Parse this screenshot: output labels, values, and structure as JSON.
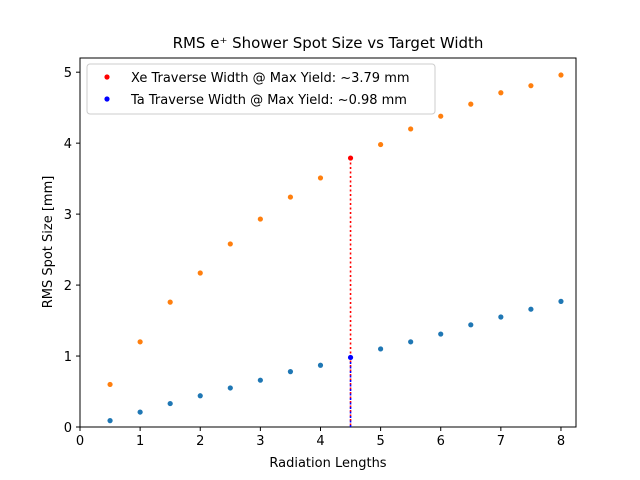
{
  "chart_data": {
    "type": "scatter",
    "title": "RMS e⁺ Shower Spot Size vs Target Width",
    "xlabel": "Radiation Lengths",
    "ylabel": "RMS Spot Size [mm]",
    "xlim": [
      0,
      8.25
    ],
    "ylim": [
      0,
      5.2
    ],
    "xticks": [
      "0",
      "1",
      "2",
      "3",
      "4",
      "5",
      "6",
      "7",
      "8"
    ],
    "yticks": [
      "0",
      "1",
      "2",
      "3",
      "4",
      "5"
    ],
    "grid": false,
    "legend_position": "upper-left",
    "series": [
      {
        "color": "#ff7f0e",
        "x": [
          0.5,
          1.0,
          1.5,
          2.0,
          2.5,
          3.0,
          3.5,
          4.0,
          5.0,
          5.5,
          6.0,
          6.5,
          7.0,
          7.5,
          8.0
        ],
        "y": [
          0.6,
          1.2,
          1.76,
          2.17,
          2.58,
          2.93,
          3.24,
          3.51,
          3.98,
          4.2,
          4.38,
          4.55,
          4.71,
          4.81,
          4.96
        ]
      },
      {
        "color": "#1f77b4",
        "x": [
          0.5,
          1.0,
          1.5,
          2.0,
          2.5,
          3.0,
          3.5,
          4.0,
          5.0,
          5.5,
          6.0,
          6.5,
          7.0,
          7.5,
          8.0
        ],
        "y": [
          0.09,
          0.21,
          0.33,
          0.44,
          0.55,
          0.66,
          0.78,
          0.87,
          1.1,
          1.2,
          1.31,
          1.44,
          1.55,
          1.66,
          1.77
        ]
      }
    ],
    "highlights": [
      {
        "name": "Xe Traverse Width @ Max Yield: ~3.79 mm",
        "color": "#ff0000",
        "x": 4.5,
        "y": 3.79
      },
      {
        "name": "Ta Traverse Width @ Max Yield: ~0.98 mm",
        "color": "#0000ff",
        "x": 4.5,
        "y": 0.98
      }
    ]
  }
}
